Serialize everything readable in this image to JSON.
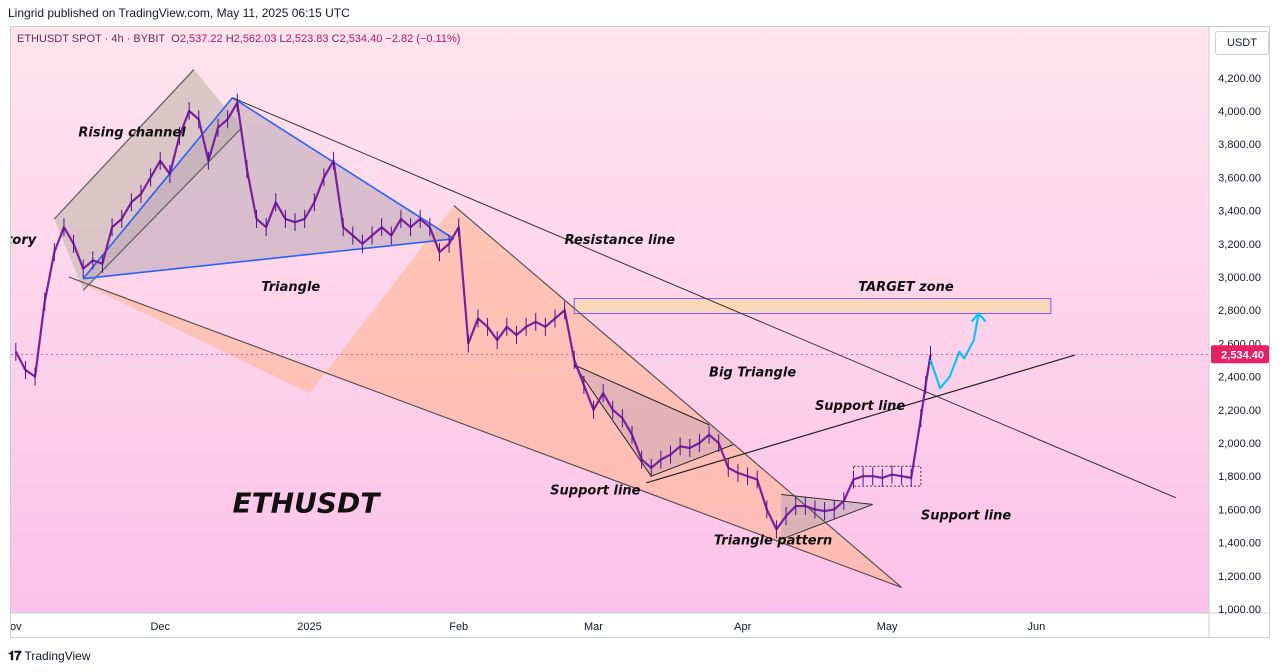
{
  "header": {
    "published_by": "Lingrid published on TradingView.com, May 11, 2025 06:15 UTC"
  },
  "legend": {
    "symbol": "ETHUSDT SPOT · 4h · BYBIT",
    "open_label": "O",
    "open": "2,537.22",
    "high_label": "H",
    "high": "2,562.03",
    "low_label": "L",
    "low": "2,523.83",
    "close_label": "C",
    "close": "2,534.40",
    "change": "−2.82 (−0.11%)"
  },
  "currency_button": "USDT",
  "footer": {
    "brand": "TradingView",
    "icon": "tradingview-logo-icon"
  },
  "colors": {
    "background_top": "#ffe4ec",
    "background_bottom": "#fcc2e9",
    "candle": "#7b1fa2",
    "wick": "#4a148c",
    "blue_line": "#2962ff",
    "price_tag": "#e91e63",
    "target_zone": "#fbd9b8",
    "target_border": "#7a5af8",
    "forecast": "#00c8ff"
  },
  "chart_data": {
    "type": "line",
    "title": "",
    "xlabel": "",
    "ylabel": "",
    "ylim": [
      950,
      4450
    ],
    "y_ticks": [
      "1,000.00",
      "1,200.00",
      "1,400.00",
      "1,600.00",
      "1,800.00",
      "2,000.00",
      "2,200.00",
      "2,400.00",
      "2,600.00",
      "2,800.00",
      "3,000.00",
      "3,200.00",
      "3,400.00",
      "3,600.00",
      "3,800.00",
      "4,000.00",
      "4,200.00"
    ],
    "y_tick_values": [
      1000,
      1200,
      1400,
      1600,
      1800,
      2000,
      2200,
      2400,
      2600,
      2800,
      3000,
      3200,
      3400,
      3600,
      3800,
      4000,
      4200
    ],
    "x_ticks": [
      {
        "label": "ov",
        "date": "2024-11-01"
      },
      {
        "label": "Dec",
        "date": "2024-12-01"
      },
      {
        "label": "2025",
        "date": "2025-01-01"
      },
      {
        "label": "Feb",
        "date": "2025-02-01"
      },
      {
        "label": "Mar",
        "date": "2025-03-01"
      },
      {
        "label": "Apr",
        "date": "2025-04-01"
      },
      {
        "label": "May",
        "date": "2025-05-01"
      },
      {
        "label": "Jun",
        "date": "2025-06-01"
      }
    ],
    "last_price": 2534.4,
    "last_price_label": "2,534.40",
    "series": [
      {
        "points": [
          [
            "2024-11-01",
            2550
          ],
          [
            "2024-11-03",
            2440
          ],
          [
            "2024-11-05",
            2400
          ],
          [
            "2024-11-07",
            2850
          ],
          [
            "2024-11-09",
            3150
          ],
          [
            "2024-11-11",
            3300
          ],
          [
            "2024-11-13",
            3200
          ],
          [
            "2024-11-15",
            3050
          ],
          [
            "2024-11-17",
            3100
          ],
          [
            "2024-11-19",
            3080
          ],
          [
            "2024-11-21",
            3300
          ],
          [
            "2024-11-23",
            3350
          ],
          [
            "2024-11-25",
            3450
          ],
          [
            "2024-11-27",
            3500
          ],
          [
            "2024-11-29",
            3600
          ],
          [
            "2024-12-01",
            3700
          ],
          [
            "2024-12-03",
            3620
          ],
          [
            "2024-12-05",
            3850
          ],
          [
            "2024-12-07",
            4000
          ],
          [
            "2024-12-09",
            3950
          ],
          [
            "2024-12-11",
            3700
          ],
          [
            "2024-12-13",
            3900
          ],
          [
            "2024-12-15",
            3950
          ],
          [
            "2024-12-17",
            4050
          ],
          [
            "2024-12-19",
            3650
          ],
          [
            "2024-12-21",
            3350
          ],
          [
            "2024-12-23",
            3300
          ],
          [
            "2024-12-25",
            3450
          ],
          [
            "2024-12-27",
            3350
          ],
          [
            "2024-12-29",
            3330
          ],
          [
            "2024-12-31",
            3350
          ],
          [
            "2025-01-02",
            3450
          ],
          [
            "2025-01-04",
            3600
          ],
          [
            "2025-01-06",
            3700
          ],
          [
            "2025-01-08",
            3300
          ],
          [
            "2025-01-10",
            3250
          ],
          [
            "2025-01-12",
            3200
          ],
          [
            "2025-01-14",
            3250
          ],
          [
            "2025-01-16",
            3300
          ],
          [
            "2025-01-18",
            3250
          ],
          [
            "2025-01-20",
            3350
          ],
          [
            "2025-01-22",
            3300
          ],
          [
            "2025-01-24",
            3350
          ],
          [
            "2025-01-26",
            3300
          ],
          [
            "2025-01-28",
            3150
          ],
          [
            "2025-01-30",
            3200
          ],
          [
            "2025-02-01",
            3300
          ],
          [
            "2025-02-03",
            2600
          ],
          [
            "2025-02-05",
            2750
          ],
          [
            "2025-02-07",
            2700
          ],
          [
            "2025-02-09",
            2620
          ],
          [
            "2025-02-11",
            2700
          ],
          [
            "2025-02-13",
            2650
          ],
          [
            "2025-02-15",
            2700
          ],
          [
            "2025-02-17",
            2730
          ],
          [
            "2025-02-19",
            2700
          ],
          [
            "2025-02-21",
            2750
          ],
          [
            "2025-02-23",
            2800
          ],
          [
            "2025-02-25",
            2500
          ],
          [
            "2025-02-27",
            2350
          ],
          [
            "2025-03-01",
            2200
          ],
          [
            "2025-03-03",
            2300
          ],
          [
            "2025-03-05",
            2200
          ],
          [
            "2025-03-07",
            2150
          ],
          [
            "2025-03-09",
            2050
          ],
          [
            "2025-03-11",
            1900
          ],
          [
            "2025-03-13",
            1850
          ],
          [
            "2025-03-15",
            1900
          ],
          [
            "2025-03-17",
            1930
          ],
          [
            "2025-03-19",
            1980
          ],
          [
            "2025-03-21",
            1970
          ],
          [
            "2025-03-23",
            2000
          ],
          [
            "2025-03-25",
            2050
          ],
          [
            "2025-03-27",
            2000
          ],
          [
            "2025-03-29",
            1850
          ],
          [
            "2025-03-31",
            1820
          ],
          [
            "2025-04-02",
            1800
          ],
          [
            "2025-04-04",
            1780
          ],
          [
            "2025-04-06",
            1600
          ],
          [
            "2025-04-08",
            1480
          ],
          [
            "2025-04-10",
            1560
          ],
          [
            "2025-04-12",
            1620
          ],
          [
            "2025-04-14",
            1620
          ],
          [
            "2025-04-16",
            1600
          ],
          [
            "2025-04-18",
            1590
          ],
          [
            "2025-04-20",
            1600
          ],
          [
            "2025-04-22",
            1650
          ],
          [
            "2025-04-24",
            1780
          ],
          [
            "2025-04-26",
            1800
          ],
          [
            "2025-04-28",
            1800
          ],
          [
            "2025-04-30",
            1790
          ],
          [
            "2025-05-02",
            1810
          ],
          [
            "2025-05-04",
            1800
          ],
          [
            "2025-05-06",
            1790
          ],
          [
            "2025-05-08",
            2150
          ],
          [
            "2025-05-09",
            2350
          ],
          [
            "2025-05-10",
            2530
          ]
        ]
      }
    ],
    "forecast_path": [
      [
        "2025-05-10",
        2500
      ],
      [
        "2025-05-12",
        2330
      ],
      [
        "2025-05-14",
        2400
      ],
      [
        "2025-05-16",
        2550
      ],
      [
        "2025-05-17",
        2510
      ],
      [
        "2025-05-19",
        2620
      ],
      [
        "2025-05-20",
        2780
      ]
    ],
    "target_zone": {
      "from": "2025-02-25",
      "to": "2025-06-04",
      "low": 2780,
      "high": 2870
    },
    "annotations": [
      {
        "text": "Rising channel",
        "date": "2024-11-14",
        "price": 3845
      },
      {
        "text": "tory",
        "date": "2024-10-30",
        "price": 3200
      },
      {
        "text": "Triangle",
        "date": "2024-12-22",
        "price": 2915
      },
      {
        "text": "Resistance line",
        "date": "2025-02-23",
        "price": 3200
      },
      {
        "text": "TARGET zone",
        "date": "2025-04-25",
        "price": 2915
      },
      {
        "text": "Big Triangle",
        "date": "2025-03-25",
        "price": 2400
      },
      {
        "text": "Support line",
        "date": "2025-04-16",
        "price": 2200
      },
      {
        "text": "Support line",
        "date": "2025-02-20",
        "price": 1690
      },
      {
        "text": "Support line",
        "date": "2025-05-08",
        "price": 1540
      },
      {
        "text": "Triangle pattern",
        "date": "2025-03-26",
        "price": 1390
      },
      {
        "text": "ETHUSDT",
        "date": "2024-12-16",
        "price": 1580
      }
    ],
    "drawings": {
      "rising_channel": [
        [
          [
            "2024-11-09",
            3350
          ],
          [
            "2024-12-08",
            4250
          ]
        ],
        [
          [
            "2024-11-15",
            2920
          ],
          [
            "2024-12-18",
            3900
          ]
        ]
      ],
      "triangle_blue": [
        [
          "2024-11-15",
          2990
        ],
        [
          "2024-12-16",
          4080
        ],
        [
          "2025-01-31",
          3230
        ]
      ],
      "resistance_line": [
        [
          "2024-12-16",
          4080
        ],
        [
          "2025-06-30",
          1670
        ]
      ],
      "support_big": [
        [
          "2024-11-12",
          3000
        ],
        [
          "2025-05-04",
          1130
        ]
      ],
      "falling_wedge": [
        [
          "2025-01-31",
          3430
        ],
        [
          "2025-05-04",
          1130
        ]
      ],
      "support_rising": [
        [
          "2025-03-12",
          1760
        ],
        [
          "2025-06-09",
          2530
        ]
      ],
      "triangle_pattern": [
        [
          "2025-04-09",
          1690
        ],
        [
          "2025-04-28",
          1630
        ],
        [
          "2025-04-09",
          1420
        ]
      ],
      "flag_big": [
        [
          "2025-02-25",
          2470
        ],
        [
          "2025-03-13",
          1800
        ],
        [
          "2025-03-30",
          1990
        ],
        [
          "2025-03-25",
          2110
        ]
      ],
      "small_box": [
        [
          "2025-04-24",
          1860
        ],
        [
          "2025-05-08",
          1740
        ]
      ]
    }
  }
}
